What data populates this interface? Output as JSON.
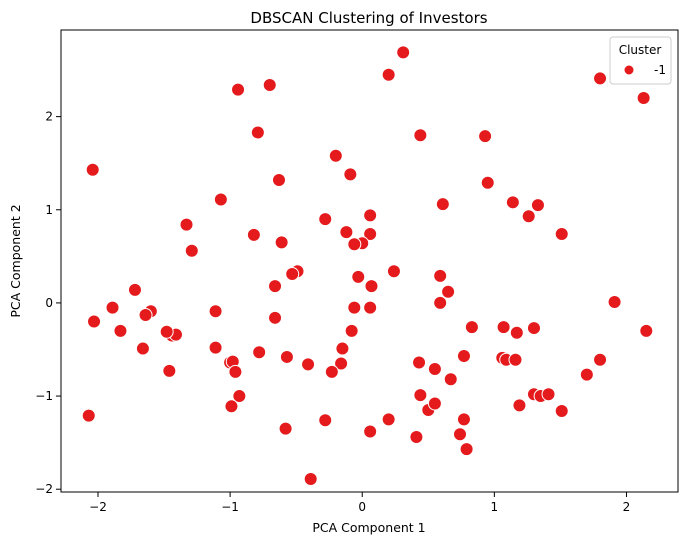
{
  "chart_data": {
    "type": "scatter",
    "title": "DBSCAN Clustering of Investors",
    "xlabel": "PCA Component 1",
    "ylabel": "PCA Component 2",
    "xlim": [
      -2.28,
      2.39
    ],
    "ylim": [
      -2.03,
      2.93
    ],
    "xticks": [
      -2,
      -1,
      0,
      1,
      2
    ],
    "yticks": [
      -2,
      -1,
      0,
      1,
      2
    ],
    "grid": false,
    "legend": {
      "title": "Cluster",
      "position": "top-right",
      "entries": [
        {
          "label": "-1",
          "color": "#e41a1c"
        }
      ]
    },
    "series": [
      {
        "name": "-1",
        "color": "#e41a1c",
        "points": [
          [
            0.31,
            2.69
          ],
          [
            0.2,
            2.45
          ],
          [
            -0.7,
            2.34
          ],
          [
            -0.94,
            2.29
          ],
          [
            1.8,
            2.41
          ],
          [
            2.13,
            2.2
          ],
          [
            -0.79,
            1.83
          ],
          [
            0.44,
            1.8
          ],
          [
            0.93,
            1.79
          ],
          [
            -0.2,
            1.58
          ],
          [
            -0.09,
            1.38
          ],
          [
            -2.04,
            1.43
          ],
          [
            -0.63,
            1.32
          ],
          [
            0.95,
            1.29
          ],
          [
            -1.07,
            1.11
          ],
          [
            0.61,
            1.06
          ],
          [
            1.14,
            1.08
          ],
          [
            1.33,
            1.05
          ],
          [
            1.26,
            0.93
          ],
          [
            0.06,
            0.94
          ],
          [
            -0.28,
            0.9
          ],
          [
            -1.33,
            0.84
          ],
          [
            -0.12,
            0.76
          ],
          [
            0.06,
            0.74
          ],
          [
            -0.82,
            0.73
          ],
          [
            1.51,
            0.74
          ],
          [
            -0.61,
            0.65
          ],
          [
            0.0,
            0.64
          ],
          [
            -0.06,
            0.63
          ],
          [
            -1.29,
            0.56
          ],
          [
            -0.03,
            0.28
          ],
          [
            0.07,
            0.18
          ],
          [
            0.24,
            0.34
          ],
          [
            -0.66,
            0.18
          ],
          [
            -0.49,
            0.34
          ],
          [
            -0.53,
            0.31
          ],
          [
            0.59,
            0.29
          ],
          [
            0.65,
            0.12
          ],
          [
            -1.72,
            0.14
          ],
          [
            -1.89,
            -0.05
          ],
          [
            -1.6,
            -0.09
          ],
          [
            -1.64,
            -0.13
          ],
          [
            -0.06,
            -0.05
          ],
          [
            0.06,
            -0.05
          ],
          [
            0.59,
            0.0
          ],
          [
            1.91,
            0.01
          ],
          [
            -1.11,
            -0.09
          ],
          [
            -2.03,
            -0.2
          ],
          [
            -0.66,
            -0.16
          ],
          [
            -1.83,
            -0.3
          ],
          [
            -1.44,
            -0.35
          ],
          [
            -1.41,
            -0.34
          ],
          [
            -1.48,
            -0.31
          ],
          [
            -0.08,
            -0.3
          ],
          [
            0.83,
            -0.26
          ],
          [
            1.07,
            -0.26
          ],
          [
            1.3,
            -0.27
          ],
          [
            1.17,
            -0.32
          ],
          [
            2.15,
            -0.3
          ],
          [
            -1.66,
            -0.49
          ],
          [
            -1.11,
            -0.48
          ],
          [
            -0.15,
            -0.49
          ],
          [
            -0.78,
            -0.53
          ],
          [
            -0.57,
            -0.58
          ],
          [
            0.77,
            -0.57
          ],
          [
            1.06,
            -0.59
          ],
          [
            1.09,
            -0.61
          ],
          [
            1.16,
            -0.61
          ],
          [
            1.8,
            -0.61
          ],
          [
            -1.0,
            -0.64
          ],
          [
            -0.98,
            -0.63
          ],
          [
            -0.16,
            -0.65
          ],
          [
            -0.41,
            -0.66
          ],
          [
            0.43,
            -0.64
          ],
          [
            0.55,
            -0.71
          ],
          [
            -1.46,
            -0.73
          ],
          [
            -0.96,
            -0.74
          ],
          [
            -0.23,
            -0.74
          ],
          [
            0.67,
            -0.82
          ],
          [
            1.7,
            -0.77
          ],
          [
            -0.93,
            -1.0
          ],
          [
            0.44,
            -0.99
          ],
          [
            1.3,
            -0.98
          ],
          [
            1.35,
            -1.0
          ],
          [
            1.41,
            -0.98
          ],
          [
            -0.99,
            -1.11
          ],
          [
            0.5,
            -1.15
          ],
          [
            0.55,
            -1.08
          ],
          [
            1.19,
            -1.1
          ],
          [
            1.51,
            -1.16
          ],
          [
            -2.07,
            -1.21
          ],
          [
            -0.28,
            -1.26
          ],
          [
            0.2,
            -1.25
          ],
          [
            0.77,
            -1.25
          ],
          [
            -0.58,
            -1.35
          ],
          [
            0.06,
            -1.38
          ],
          [
            0.41,
            -1.44
          ],
          [
            0.74,
            -1.41
          ],
          [
            0.79,
            -1.57
          ],
          [
            -0.39,
            -1.89
          ]
        ]
      }
    ]
  }
}
